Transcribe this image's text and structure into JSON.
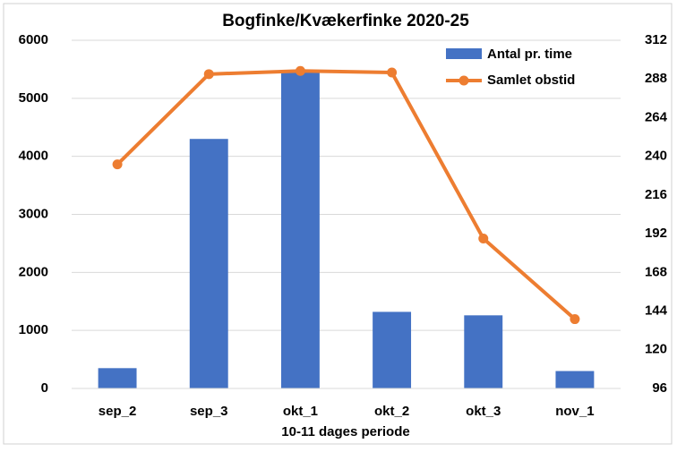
{
  "chart_data": {
    "type": "bar-line",
    "title": "Bogfinke/Kvækerfinke 2020-25",
    "x_label": "10-11 dages periode",
    "categories": [
      "sep_2",
      "sep_3",
      "okt_1",
      "okt_2",
      "okt_3",
      "nov_1"
    ],
    "series": [
      {
        "name": "Antal pr. time",
        "type": "bar",
        "color": "#4472c4",
        "values": [
          350,
          4300,
          5450,
          1320,
          1260,
          300
        ]
      },
      {
        "name": "Samlet obstid",
        "type": "line",
        "axis": "y2",
        "color": "#ed7d31",
        "values": [
          235,
          291,
          293,
          292,
          189,
          139
        ]
      }
    ],
    "ylim": [
      0,
      6000
    ],
    "yticks": [
      0,
      1000,
      2000,
      3000,
      4000,
      5000,
      6000
    ],
    "y2lim": [
      96,
      312
    ],
    "y2ticks": [
      96,
      120,
      144,
      168,
      192,
      216,
      240,
      264,
      288,
      312
    ],
    "grid": true,
    "legend": "top-right"
  }
}
